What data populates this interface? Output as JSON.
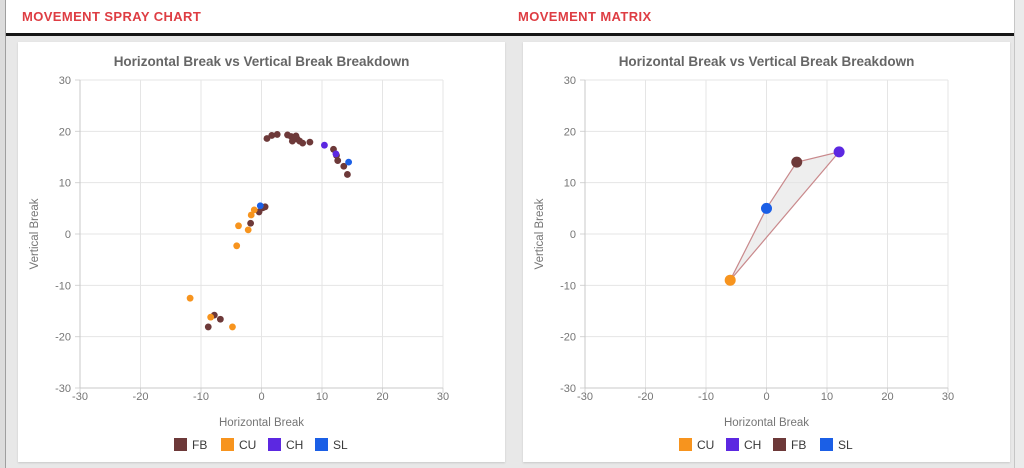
{
  "sections": [
    {
      "header": "MOVEMENT SPRAY CHART"
    },
    {
      "header": "MOVEMENT MATRIX"
    }
  ],
  "ui_colors": {
    "header_text": "#de3d43",
    "divider": "#161616",
    "page_bg": "#e8e8e8",
    "card_bg": "#ffffff",
    "grid_line": "#e5e5e5",
    "axis_border": "#c9c9c9",
    "tick_mark": "#d4d4d4",
    "tick_text": "#757575",
    "chart_title_text": "#666666",
    "legend_text": "#3a3a3a"
  },
  "pitch_types": {
    "FB": {
      "label": "FB",
      "color": "#6d3939"
    },
    "CU": {
      "label": "CU",
      "color": "#f7941e"
    },
    "CH": {
      "label": "CH",
      "color": "#5c28e1"
    },
    "SL": {
      "label": "SL",
      "color": "#1b5fe6"
    }
  },
  "chart_data": [
    {
      "type": "scatter",
      "name": "movement-spray-chart",
      "title": "Horizontal Break vs Vertical Break Breakdown",
      "xlabel": "Horizontal Break",
      "ylabel": "Vertical Break",
      "xlim": [
        -30,
        30
      ],
      "ylim": [
        -30,
        30
      ],
      "tick_step": 10,
      "grid": true,
      "legend_position": "bottom",
      "point_radius": 3.4,
      "series": [
        {
          "name": "FB",
          "color": "#6d3939",
          "points": [
            [
              0.9,
              18.6
            ],
            [
              1.7,
              19.2
            ],
            [
              2.6,
              19.4
            ],
            [
              4.3,
              19.3
            ],
            [
              4.9,
              19.0
            ],
            [
              5.4,
              18.8
            ],
            [
              5.9,
              18.5
            ],
            [
              6.3,
              18.1
            ],
            [
              6.8,
              17.7
            ],
            [
              5.1,
              18.1
            ],
            [
              5.7,
              19.1
            ],
            [
              8.0,
              17.9
            ],
            [
              11.9,
              16.5
            ],
            [
              12.4,
              15.3
            ],
            [
              12.6,
              14.3
            ],
            [
              13.6,
              13.2
            ],
            [
              14.2,
              11.6
            ],
            [
              0.2,
              5.1
            ],
            [
              0.6,
              5.3
            ],
            [
              -0.4,
              4.3
            ],
            [
              -1.8,
              2.1
            ],
            [
              -7.8,
              -15.8
            ],
            [
              -6.8,
              -16.6
            ],
            [
              -8.8,
              -18.1
            ]
          ]
        },
        {
          "name": "CU",
          "color": "#f7941e",
          "points": [
            [
              -1.2,
              4.7
            ],
            [
              -1.7,
              3.7
            ],
            [
              -2.2,
              0.8
            ],
            [
              -3.8,
              1.6
            ],
            [
              -4.1,
              -2.3
            ],
            [
              -11.8,
              -12.5
            ],
            [
              -8.4,
              -16.2
            ],
            [
              -4.8,
              -18.1
            ]
          ]
        },
        {
          "name": "CH",
          "color": "#5c28e1",
          "points": [
            [
              10.4,
              17.3
            ],
            [
              12.3,
              15.6
            ]
          ]
        },
        {
          "name": "SL",
          "color": "#1b5fe6",
          "points": [
            [
              14.4,
              14.0
            ],
            [
              -0.2,
              5.5
            ]
          ]
        }
      ]
    },
    {
      "type": "scatter",
      "name": "movement-matrix-chart",
      "title": "Horizontal Break vs Vertical Break Breakdown",
      "xlabel": "Horizontal Break",
      "ylabel": "Vertical Break",
      "xlim": [
        -30,
        30
      ],
      "ylim": [
        -30,
        30
      ],
      "tick_step": 10,
      "grid": true,
      "legend_position": "bottom",
      "point_radius": 5.5,
      "polygon": {
        "points": [
          [
            -6,
            -9
          ],
          [
            0,
            5
          ],
          [
            5,
            14
          ],
          [
            12,
            16
          ]
        ],
        "fill": "#e2e2e2",
        "fill_opacity": 0.6,
        "stroke": "#c9898c"
      },
      "series": [
        {
          "name": "CU",
          "color": "#f7941e",
          "points": [
            [
              -6,
              -9
            ]
          ]
        },
        {
          "name": "CH",
          "color": "#5c28e1",
          "points": [
            [
              12,
              16
            ]
          ]
        },
        {
          "name": "FB",
          "color": "#6d3939",
          "points": [
            [
              5,
              14
            ]
          ]
        },
        {
          "name": "SL",
          "color": "#1b5fe6",
          "points": [
            [
              0,
              5
            ]
          ]
        }
      ]
    }
  ]
}
